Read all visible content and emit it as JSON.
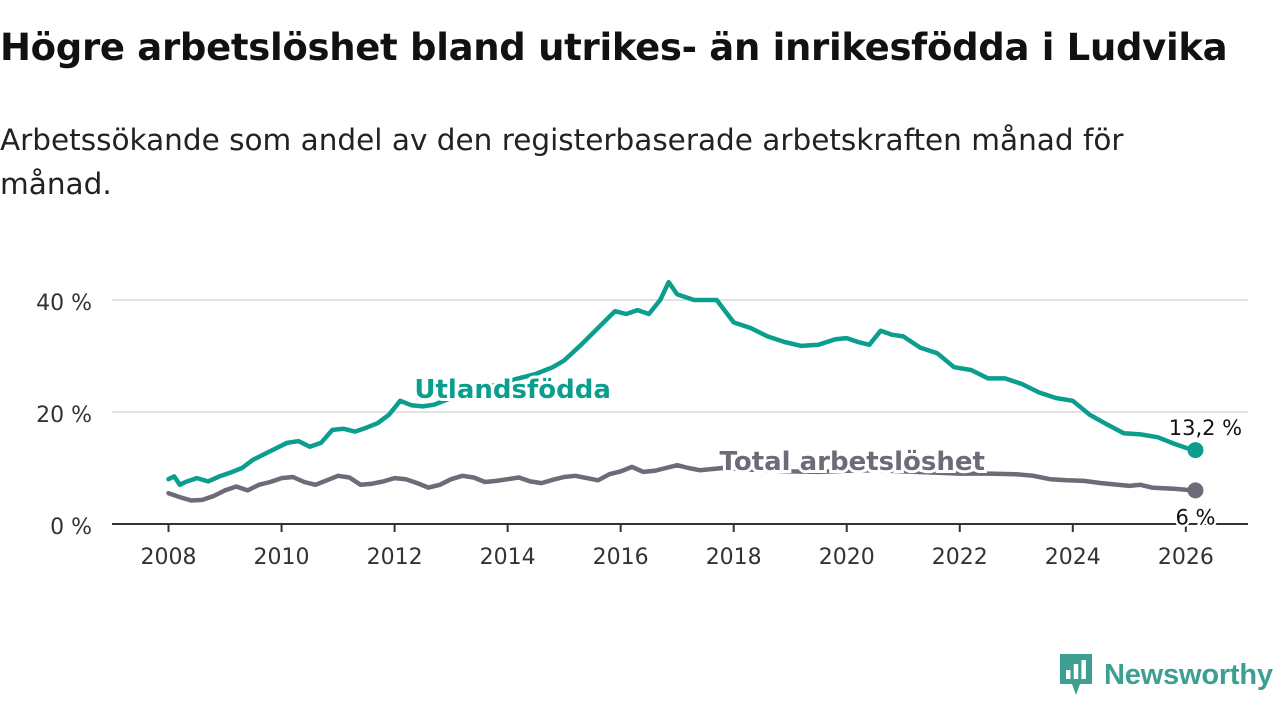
{
  "colors": {
    "foreign_born": "#0b9e8f",
    "total": "#6e6a78",
    "grid": "#d8d8d8",
    "axis": "#333333"
  },
  "brand": {
    "name": "Newsworthy",
    "color": "#3d9e92",
    "icon": "newsworthy-logo-icon"
  },
  "chart_data": {
    "type": "line",
    "title": "Högre arbetslöshet bland utrikes- än inrikesfödda i Ludvika",
    "subtitle": "Arbetssökande som andel av den registerbaserade arbetskraften månad för månad.",
    "xlabel": "",
    "ylabel": "",
    "xlim": [
      2007.0,
      2027.1
    ],
    "ylim": [
      0,
      40
    ],
    "x_ticks": [
      2008,
      2010,
      2012,
      2014,
      2016,
      2018,
      2020,
      2022,
      2024,
      2026
    ],
    "x_tick_labels": [
      "2008",
      "2010",
      "2012",
      "2014",
      "2016",
      "2018",
      "2020",
      "2022",
      "2024",
      "2026"
    ],
    "y_ticks": [
      0,
      20,
      40
    ],
    "y_tick_labels": [
      "0 %",
      "20 %",
      "40 %"
    ],
    "grid": true,
    "series": [
      {
        "name": "Utlandsfödda",
        "label": "Utlandsfödda",
        "color": "#0b9e8f",
        "end_label": "13,2 %",
        "x": [
          2008.0,
          2008.1,
          2008.2,
          2008.3,
          2008.5,
          2008.7,
          2008.9,
          2009.1,
          2009.3,
          2009.5,
          2009.7,
          2009.9,
          2010.1,
          2010.3,
          2010.5,
          2010.7,
          2010.9,
          2011.1,
          2011.3,
          2011.5,
          2011.7,
          2011.9,
          2012.1,
          2012.3,
          2012.5,
          2012.7,
          2013.0,
          2013.5,
          2014.0,
          2014.5,
          2014.8,
          2015.0,
          2015.3,
          2015.6,
          2015.9,
          2016.1,
          2016.3,
          2016.5,
          2016.7,
          2016.85,
          2017.0,
          2017.3,
          2017.7,
          2018.0,
          2018.3,
          2018.6,
          2018.9,
          2019.2,
          2019.5,
          2019.8,
          2020.0,
          2020.2,
          2020.4,
          2020.6,
          2020.8,
          2021.0,
          2021.3,
          2021.6,
          2021.9,
          2022.2,
          2022.5,
          2022.8,
          2023.1,
          2023.4,
          2023.7,
          2024.0,
          2024.3,
          2024.6,
          2024.9,
          2025.2,
          2025.5,
          2025.8,
          2026.0,
          2026.17
        ],
        "y": [
          8.0,
          8.5,
          7.0,
          7.5,
          8.2,
          7.6,
          8.5,
          9.2,
          10.0,
          11.5,
          12.5,
          13.5,
          14.5,
          14.8,
          13.8,
          14.5,
          16.8,
          17.0,
          16.5,
          17.2,
          18.0,
          19.5,
          22.0,
          21.2,
          21.0,
          21.3,
          22.5,
          24.0,
          25.5,
          26.8,
          28.0,
          29.2,
          32.0,
          35.0,
          38.0,
          37.5,
          38.2,
          37.5,
          40.0,
          43.2,
          41.0,
          40.0,
          40.0,
          36.0,
          35.0,
          33.5,
          32.5,
          31.8,
          32.0,
          33.0,
          33.2,
          32.5,
          32.0,
          34.5,
          33.8,
          33.5,
          31.5,
          30.5,
          28.0,
          27.5,
          26.0,
          26.0,
          25.0,
          23.5,
          22.5,
          22.0,
          19.5,
          17.8,
          16.2,
          16.0,
          15.5,
          14.3,
          13.6,
          13.2
        ]
      },
      {
        "name": "Total arbetslöshet",
        "label": "Total arbetslöshet",
        "color": "#6e6a78",
        "end_label": "6 %",
        "x": [
          2008.0,
          2008.2,
          2008.4,
          2008.6,
          2008.8,
          2009.0,
          2009.2,
          2009.4,
          2009.6,
          2009.8,
          2010.0,
          2010.2,
          2010.4,
          2010.6,
          2010.8,
          2011.0,
          2011.2,
          2011.4,
          2011.6,
          2011.8,
          2012.0,
          2012.2,
          2012.4,
          2012.6,
          2012.8,
          2013.0,
          2013.2,
          2013.4,
          2013.6,
          2013.8,
          2014.0,
          2014.2,
          2014.4,
          2014.6,
          2014.8,
          2015.0,
          2015.2,
          2015.4,
          2015.6,
          2015.8,
          2016.0,
          2016.2,
          2016.4,
          2016.6,
          2016.8,
          2017.0,
          2017.2,
          2017.4,
          2017.6,
          2017.8,
          2018.0,
          2018.5,
          2019.0,
          2019.5,
          2020.0,
          2020.5,
          2021.0,
          2021.5,
          2022.0,
          2022.5,
          2023.0,
          2023.3,
          2023.6,
          2023.9,
          2024.2,
          2024.5,
          2024.8,
          2025.0,
          2025.2,
          2025.4,
          2025.6,
          2025.8,
          2026.0,
          2026.17
        ],
        "y": [
          5.5,
          4.8,
          4.2,
          4.3,
          5.0,
          6.0,
          6.7,
          6.0,
          7.0,
          7.5,
          8.2,
          8.4,
          7.5,
          7.0,
          7.8,
          8.6,
          8.3,
          7.0,
          7.2,
          7.6,
          8.2,
          8.0,
          7.3,
          6.5,
          7.0,
          8.0,
          8.6,
          8.3,
          7.5,
          7.7,
          8.0,
          8.3,
          7.6,
          7.3,
          7.9,
          8.4,
          8.6,
          8.2,
          7.8,
          8.9,
          9.4,
          10.2,
          9.3,
          9.5,
          10.0,
          10.5,
          10.0,
          9.6,
          9.8,
          10.0,
          9.9,
          9.6,
          9.4,
          9.3,
          9.5,
          9.6,
          9.4,
          9.2,
          9.0,
          9.0,
          8.9,
          8.6,
          8.0,
          7.8,
          7.7,
          7.3,
          7.0,
          6.8,
          7.0,
          6.5,
          6.4,
          6.3,
          6.1,
          6.0
        ]
      }
    ]
  }
}
